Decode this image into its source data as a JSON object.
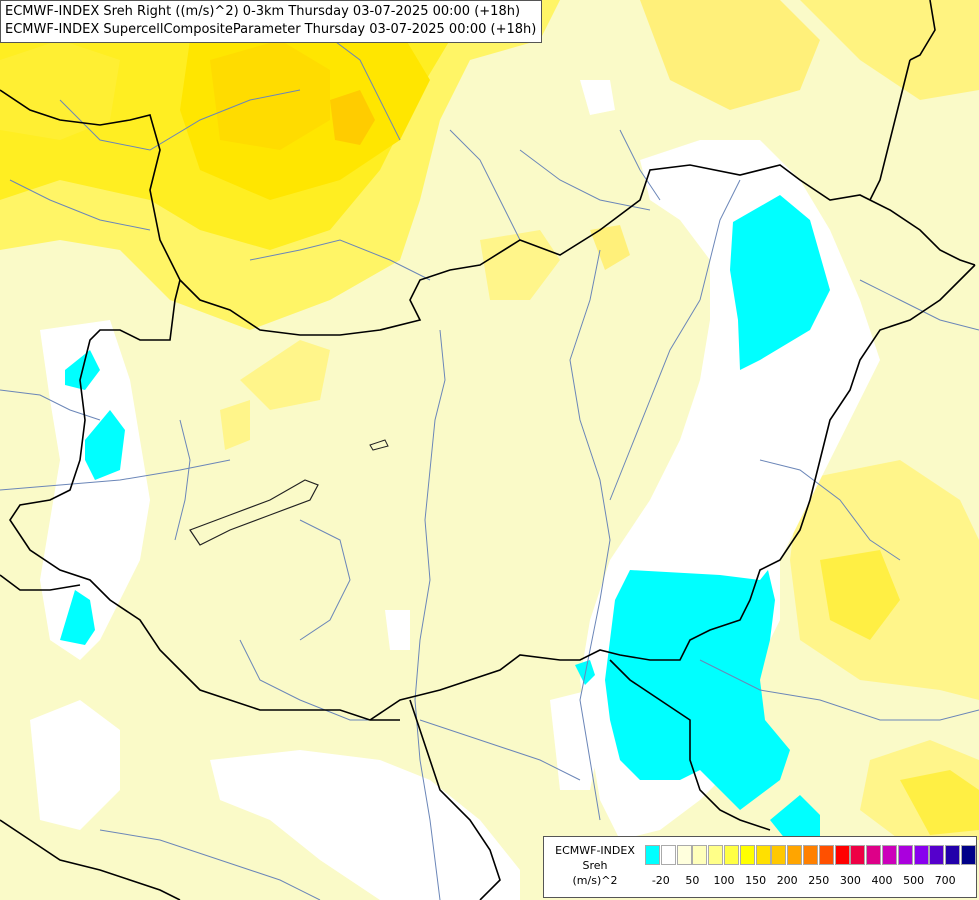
{
  "header": {
    "line1": "ECMWF-INDEX Sreh Right ((m/s)^2) 0-3km Thursday 03-07-2025 00:00 (+18h)",
    "line2": "ECMWF-INDEX SupercellCompositeParameter Thursday 03-07-2025 00:00 (+18h)"
  },
  "legend": {
    "line1": "ECMWF-INDEX",
    "line2": "Sreh",
    "line3": "(m/s)^2",
    "colors": [
      "#00ffff",
      "#ffffff",
      "#ffffdd",
      "#ffffbb",
      "#ffff88",
      "#ffff44",
      "#ffff00",
      "#ffe000",
      "#ffc800",
      "#ffa500",
      "#ff8000",
      "#ff5000",
      "#ff0000",
      "#ee0044",
      "#dd0088",
      "#cc00bb",
      "#aa00dd",
      "#8800ee",
      "#5500cc",
      "#2200aa",
      "#000088"
    ],
    "ticks": [
      {
        "label": "-20",
        "pos": 1
      },
      {
        "label": "50",
        "pos": 3
      },
      {
        "label": "100",
        "pos": 5
      },
      {
        "label": "150",
        "pos": 7
      },
      {
        "label": "200",
        "pos": 9
      },
      {
        "label": "250",
        "pos": 11
      },
      {
        "label": "300",
        "pos": 13
      },
      {
        "label": "400",
        "pos": 15
      },
      {
        "label": "500",
        "pos": 17
      },
      {
        "label": "700",
        "pos": 19
      }
    ]
  }
}
